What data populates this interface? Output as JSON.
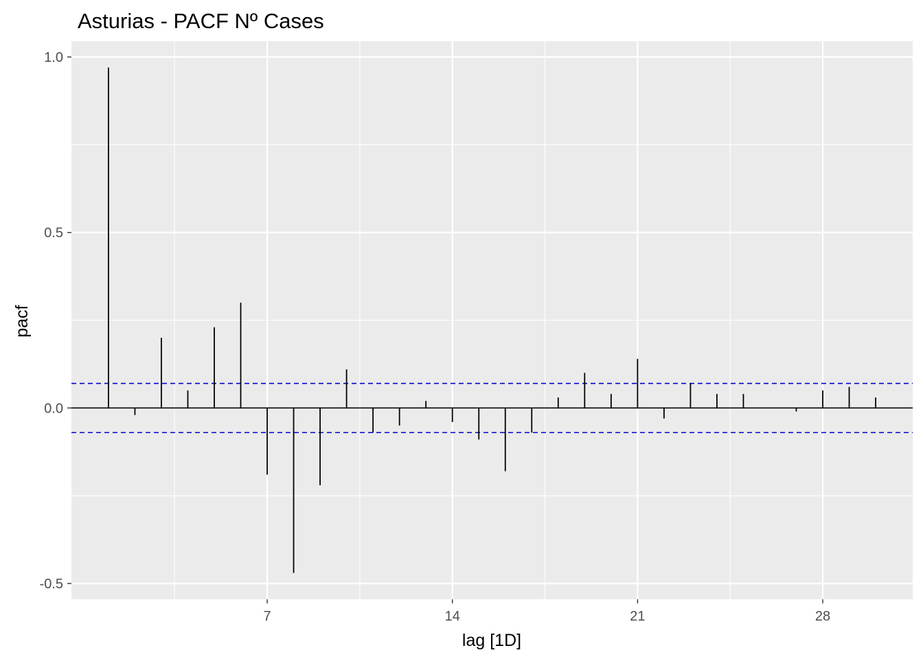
{
  "chart_data": {
    "type": "bar",
    "title": "Asturias - PACF Nº Cases",
    "xlabel": "lag [1D]",
    "ylabel": "pacf",
    "x": [
      1,
      2,
      3,
      4,
      5,
      6,
      7,
      8,
      9,
      10,
      11,
      12,
      13,
      14,
      15,
      16,
      17,
      18,
      19,
      20,
      21,
      22,
      23,
      24,
      25,
      26,
      27,
      28,
      29,
      30
    ],
    "values": [
      0.97,
      -0.02,
      0.2,
      0.05,
      0.23,
      0.3,
      -0.19,
      -0.47,
      -0.22,
      0.11,
      -0.07,
      -0.05,
      0.02,
      -0.04,
      -0.09,
      -0.18,
      -0.07,
      0.03,
      0.1,
      0.04,
      0.14,
      -0.03,
      0.07,
      0.04,
      0.04,
      0.0,
      -0.01,
      0.05,
      0.06,
      0.03
    ],
    "xlim": [
      -0.4,
      31.4
    ],
    "ylim": [
      -0.545,
      1.045
    ],
    "x_ticks": [
      7,
      14,
      21,
      28
    ],
    "x_tick_labels": [
      "7",
      "14",
      "21",
      "28"
    ],
    "y_ticks": [
      -0.5,
      0.0,
      0.5,
      1.0
    ],
    "y_tick_labels": [
      "-0.5",
      "0.0",
      "0.5",
      "1.0"
    ],
    "confidence_bound": 0.07,
    "grid": true,
    "colors": {
      "panel": "#ebebeb",
      "grid": "#ffffff",
      "spike": "#000000",
      "bound": "#0000cc"
    }
  }
}
